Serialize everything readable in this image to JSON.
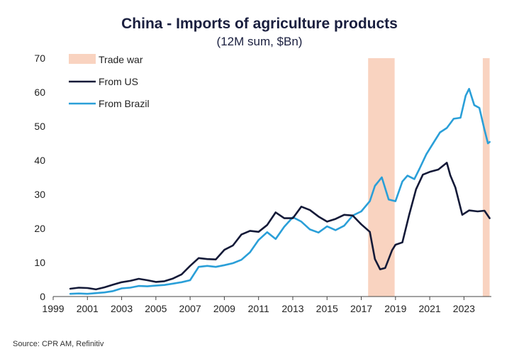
{
  "chart_data": {
    "type": "line",
    "title": "China - Imports  of agriculture products",
    "subtitle": "(12M sum, $Bn)",
    "xlabel": "",
    "ylabel": "",
    "xlim": [
      1999,
      2024.6
    ],
    "ylim": [
      0,
      70
    ],
    "x_ticks": [
      "1999",
      "2001",
      "2003",
      "2005",
      "2007",
      "2009",
      "2011",
      "2013",
      "2015",
      "2017",
      "2019",
      "2021",
      "2023"
    ],
    "y_ticks": [
      "0",
      "10",
      "20",
      "30",
      "40",
      "50",
      "60",
      "70"
    ],
    "grid": false,
    "legend_position": "top-left",
    "shaded_regions": [
      {
        "name": "Trade war",
        "start": 2017.4,
        "end": 2018.95,
        "color": "#f9d3c0"
      },
      {
        "name": "Trade war",
        "start": 2024.1,
        "end": 2024.5,
        "color": "#f9d3c0"
      }
    ],
    "series": [
      {
        "name": "From US",
        "color": "#141a38",
        "points": [
          [
            2000.0,
            2.3
          ],
          [
            2000.5,
            2.6
          ],
          [
            2001.0,
            2.5
          ],
          [
            2001.5,
            2.1
          ],
          [
            2002.0,
            2.7
          ],
          [
            2002.5,
            3.5
          ],
          [
            2003.0,
            4.2
          ],
          [
            2003.5,
            4.6
          ],
          [
            2004.0,
            5.2
          ],
          [
            2004.5,
            4.8
          ],
          [
            2005.0,
            4.3
          ],
          [
            2005.5,
            4.5
          ],
          [
            2006.0,
            5.3
          ],
          [
            2006.5,
            6.5
          ],
          [
            2007.0,
            9.0
          ],
          [
            2007.5,
            11.3
          ],
          [
            2008.0,
            11.0
          ],
          [
            2008.5,
            10.9
          ],
          [
            2009.0,
            13.7
          ],
          [
            2009.5,
            15.0
          ],
          [
            2010.0,
            18.2
          ],
          [
            2010.5,
            19.3
          ],
          [
            2011.0,
            19.0
          ],
          [
            2011.5,
            21.0
          ],
          [
            2012.0,
            24.7
          ],
          [
            2012.5,
            23.0
          ],
          [
            2013.0,
            23.0
          ],
          [
            2013.5,
            26.4
          ],
          [
            2014.0,
            25.4
          ],
          [
            2014.5,
            23.5
          ],
          [
            2015.0,
            22.0
          ],
          [
            2015.5,
            22.8
          ],
          [
            2016.0,
            24.0
          ],
          [
            2016.5,
            23.8
          ],
          [
            2017.0,
            21.2
          ],
          [
            2017.5,
            19.0
          ],
          [
            2017.8,
            11.0
          ],
          [
            2018.1,
            8.0
          ],
          [
            2018.4,
            8.4
          ],
          [
            2018.8,
            13.6
          ],
          [
            2019.0,
            15.2
          ],
          [
            2019.4,
            15.9
          ],
          [
            2019.8,
            24.0
          ],
          [
            2020.2,
            31.5
          ],
          [
            2020.6,
            35.8
          ],
          [
            2021.0,
            36.6
          ],
          [
            2021.5,
            37.3
          ],
          [
            2022.0,
            39.3
          ],
          [
            2022.2,
            35.6
          ],
          [
            2022.5,
            32.0
          ],
          [
            2022.9,
            24.0
          ],
          [
            2023.3,
            25.3
          ],
          [
            2023.8,
            25.0
          ],
          [
            2024.2,
            25.2
          ],
          [
            2024.5,
            23.0
          ]
        ]
      },
      {
        "name": "From Brazil",
        "color": "#2a9fd8",
        "points": [
          [
            2000.0,
            0.8
          ],
          [
            2000.5,
            0.9
          ],
          [
            2001.0,
            0.8
          ],
          [
            2001.5,
            1.0
          ],
          [
            2002.0,
            1.2
          ],
          [
            2002.5,
            1.6
          ],
          [
            2003.0,
            2.4
          ],
          [
            2003.5,
            2.6
          ],
          [
            2004.0,
            3.1
          ],
          [
            2004.5,
            3.0
          ],
          [
            2005.0,
            3.2
          ],
          [
            2005.5,
            3.4
          ],
          [
            2006.0,
            3.8
          ],
          [
            2006.5,
            4.2
          ],
          [
            2007.0,
            4.8
          ],
          [
            2007.5,
            8.7
          ],
          [
            2008.0,
            9.0
          ],
          [
            2008.5,
            8.7
          ],
          [
            2009.0,
            9.2
          ],
          [
            2009.5,
            9.8
          ],
          [
            2010.0,
            10.8
          ],
          [
            2010.5,
            13.0
          ],
          [
            2011.0,
            16.6
          ],
          [
            2011.5,
            18.9
          ],
          [
            2012.0,
            16.9
          ],
          [
            2012.5,
            20.5
          ],
          [
            2013.0,
            23.3
          ],
          [
            2013.5,
            22.0
          ],
          [
            2014.0,
            19.7
          ],
          [
            2014.5,
            18.8
          ],
          [
            2015.0,
            20.6
          ],
          [
            2015.5,
            19.5
          ],
          [
            2016.0,
            20.8
          ],
          [
            2016.5,
            23.8
          ],
          [
            2017.0,
            25.0
          ],
          [
            2017.5,
            28.0
          ],
          [
            2017.8,
            32.5
          ],
          [
            2018.2,
            35.0
          ],
          [
            2018.6,
            28.5
          ],
          [
            2019.0,
            28.0
          ],
          [
            2019.4,
            33.8
          ],
          [
            2019.7,
            35.5
          ],
          [
            2020.1,
            34.5
          ],
          [
            2020.4,
            37.5
          ],
          [
            2020.8,
            41.8
          ],
          [
            2021.2,
            45.0
          ],
          [
            2021.6,
            48.2
          ],
          [
            2022.0,
            49.5
          ],
          [
            2022.4,
            52.2
          ],
          [
            2022.8,
            52.5
          ],
          [
            2023.1,
            59.0
          ],
          [
            2023.3,
            61.0
          ],
          [
            2023.6,
            56.2
          ],
          [
            2023.9,
            55.4
          ],
          [
            2024.2,
            49.0
          ],
          [
            2024.4,
            45.0
          ],
          [
            2024.5,
            45.4
          ]
        ]
      }
    ]
  },
  "source": "Source: CPR AM, Refinitiv"
}
